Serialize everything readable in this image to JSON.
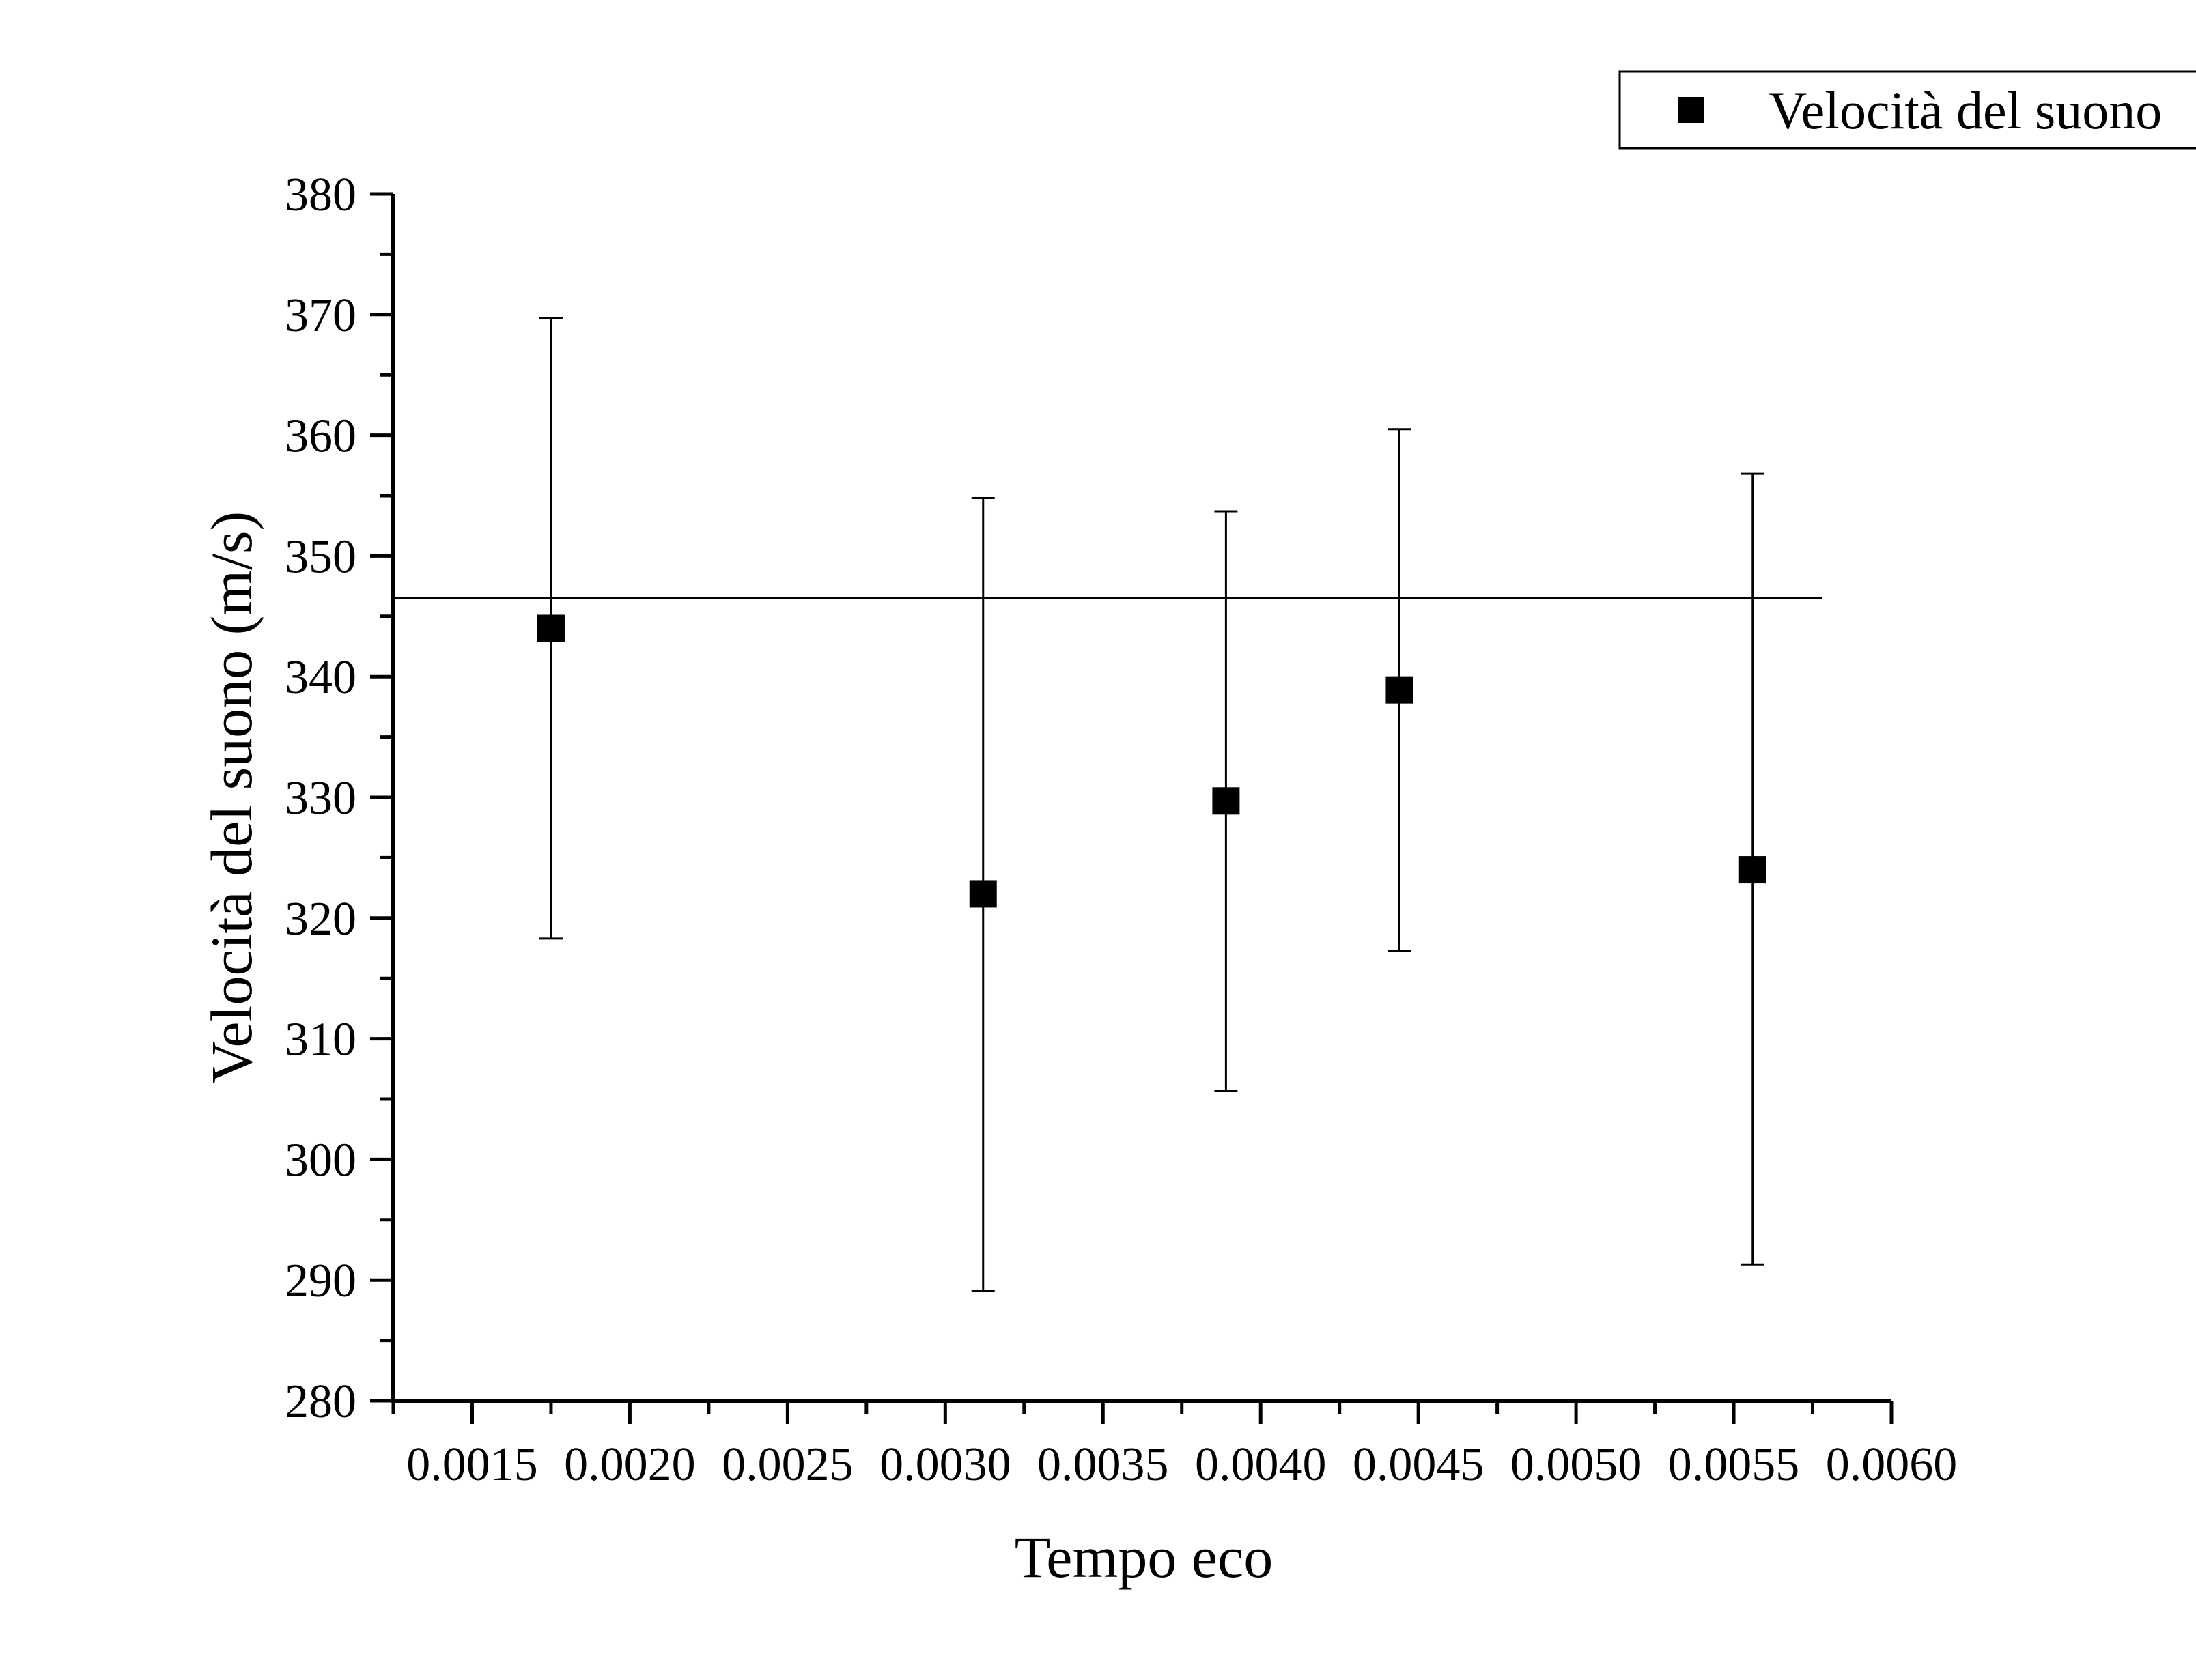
{
  "chart_data": {
    "type": "scatter",
    "xlabel": "Tempo eco",
    "ylabel": "Velocità del suono (m/s)",
    "xlim": [
      0.00125,
      0.006
    ],
    "ylim": [
      280,
      380
    ],
    "x_ticks": [
      0.0015,
      0.002,
      0.0025,
      0.003,
      0.0035,
      0.004,
      0.0045,
      0.005,
      0.0055,
      0.006
    ],
    "x_tick_labels": [
      "0.0015",
      "0.0020",
      "0.0025",
      "0.0030",
      "0.0035",
      "0.0040",
      "0.0045",
      "0.0050",
      "0.0055",
      "0.0060"
    ],
    "y_ticks": [
      280,
      290,
      300,
      310,
      320,
      330,
      340,
      350,
      360,
      370,
      380
    ],
    "y_tick_labels": [
      "280",
      "290",
      "300",
      "310",
      "320",
      "330",
      "340",
      "350",
      "360",
      "370",
      "380"
    ],
    "grid": false,
    "legend_position": "top-right",
    "series": [
      {
        "name": "Velocità del suono",
        "marker": "square",
        "color": "#000000",
        "points": [
          {
            "x": 0.00175,
            "y": 344.0,
            "err_low": 318.3,
            "err_high": 369.7
          },
          {
            "x": 0.00312,
            "y": 322.0,
            "err_low": 289.1,
            "err_high": 354.8
          },
          {
            "x": 0.00389,
            "y": 329.7,
            "err_low": 305.7,
            "err_high": 353.7
          },
          {
            "x": 0.00444,
            "y": 338.9,
            "err_low": 317.3,
            "err_high": 360.5
          },
          {
            "x": 0.00556,
            "y": 324.0,
            "err_low": 291.3,
            "err_high": 356.8
          }
        ]
      }
    ],
    "reference_line": {
      "y": 346.5,
      "x_start": 0.00125,
      "x_end": 0.00578,
      "color": "#000000"
    }
  }
}
